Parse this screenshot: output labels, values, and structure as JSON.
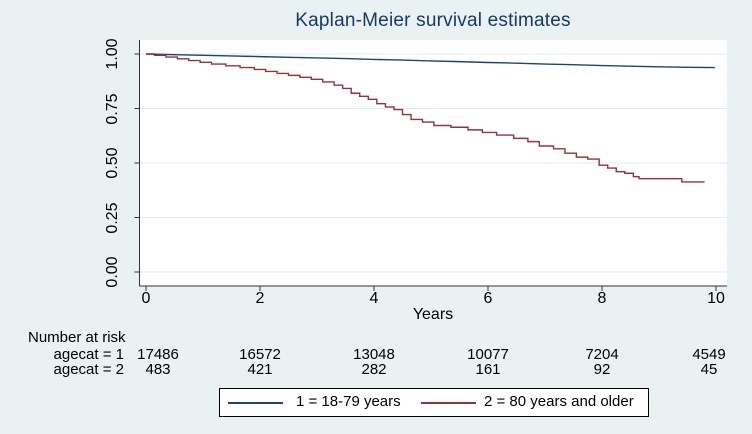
{
  "title": {
    "text": "Kaplan-Meier survival estimates"
  },
  "axes": {
    "x_label": "Years",
    "x_tick_labels": [
      "0",
      "2",
      "4",
      "6",
      "8",
      "10"
    ],
    "y_tick_labels": [
      "0.00",
      "0.25",
      "0.50",
      "0.75",
      "1.00"
    ]
  },
  "risk_table": {
    "heading": "Number at risk",
    "rows": [
      {
        "label": "agecat = 1",
        "values": [
          "17486",
          "16572",
          "13048",
          "10077",
          "7204",
          "4549"
        ]
      },
      {
        "label": "agecat = 2",
        "values": [
          "483",
          "421",
          "282",
          "161",
          "92",
          "45"
        ]
      }
    ]
  },
  "legend": {
    "items": [
      {
        "label": "1 = 18-79 years",
        "color": "#1a476f"
      },
      {
        "label": "2 = 80 years and older",
        "color": "#90353b"
      }
    ]
  },
  "colors": {
    "background": "#e9f1f2",
    "plot_background": "#ffffff",
    "grid": "#e2ecee",
    "axis": "#333333",
    "title": "#173a63",
    "series1": "#1a476f",
    "series2": "#90353b"
  },
  "chart_data": {
    "type": "line",
    "title": "Kaplan-Meier survival estimates",
    "xlabel": "Years",
    "ylabel": "",
    "xlim": [
      0,
      10
    ],
    "ylim": [
      0,
      1
    ],
    "x_tick_values": [
      0,
      2,
      4,
      6,
      8,
      10
    ],
    "y_tick_values": [
      0,
      0.25,
      0.5,
      0.75,
      1
    ],
    "grid": "horizontal",
    "legend_position": "bottom",
    "series": [
      {
        "name": "1 = 18-79 years",
        "group": "agecat = 1",
        "color": "#1a476f",
        "step": false,
        "x": [
          0,
          0.5,
          1,
          1.5,
          2,
          2.5,
          3,
          3.5,
          4,
          4.5,
          5,
          5.5,
          6,
          6.5,
          7,
          7.5,
          8,
          8.5,
          9,
          9.5,
          9.98
        ],
        "y": [
          1.0,
          0.997,
          0.994,
          0.991,
          0.988,
          0.985,
          0.982,
          0.979,
          0.975,
          0.972,
          0.968,
          0.965,
          0.961,
          0.958,
          0.954,
          0.951,
          0.947,
          0.944,
          0.941,
          0.939,
          0.938
        ]
      },
      {
        "name": "2 = 80 years and older",
        "group": "agecat = 2",
        "color": "#90353b",
        "step": true,
        "x": [
          0,
          0.15,
          0.35,
          0.55,
          0.75,
          0.95,
          1.15,
          1.4,
          1.65,
          1.9,
          2.1,
          2.3,
          2.5,
          2.7,
          2.9,
          3.1,
          3.3,
          3.45,
          3.6,
          3.75,
          3.9,
          4.05,
          4.2,
          4.35,
          4.5,
          4.65,
          4.85,
          5.05,
          5.35,
          5.65,
          5.9,
          6.15,
          6.45,
          6.7,
          6.9,
          7.15,
          7.35,
          7.55,
          7.75,
          7.95,
          8.1,
          8.25,
          8.4,
          8.55,
          8.65,
          9.3,
          9.4,
          9.8
        ],
        "y": [
          1.0,
          0.994,
          0.986,
          0.978,
          0.97,
          0.962,
          0.954,
          0.946,
          0.938,
          0.929,
          0.92,
          0.911,
          0.902,
          0.893,
          0.884,
          0.872,
          0.857,
          0.842,
          0.82,
          0.806,
          0.792,
          0.772,
          0.757,
          0.745,
          0.722,
          0.7,
          0.688,
          0.672,
          0.664,
          0.652,
          0.64,
          0.628,
          0.613,
          0.598,
          0.578,
          0.565,
          0.545,
          0.527,
          0.518,
          0.49,
          0.477,
          0.46,
          0.453,
          0.437,
          0.428,
          0.428,
          0.413,
          0.413
        ]
      }
    ]
  },
  "layout_values": {
    "risk_col_centers": [
      158,
      260,
      374,
      488,
      602,
      709
    ],
    "risk_row_tops": [
      346,
      361
    ],
    "risk_label_left": 14,
    "legend_line_lefts": [
      8,
      201
    ],
    "legend_label_lefts": [
      76,
      264
    ]
  }
}
